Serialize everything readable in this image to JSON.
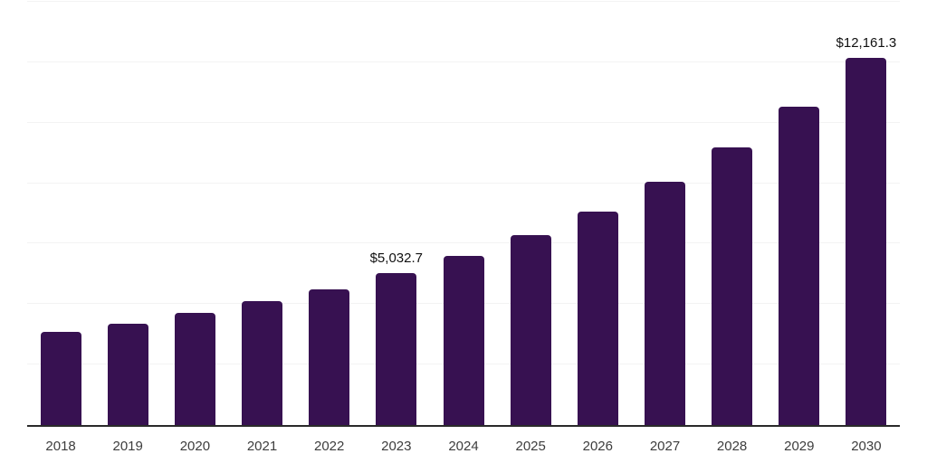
{
  "chart_data": {
    "type": "bar",
    "title": "",
    "xlabel": "",
    "ylabel": "",
    "categories": [
      "2018",
      "2019",
      "2020",
      "2021",
      "2022",
      "2023",
      "2024",
      "2025",
      "2026",
      "2027",
      "2028",
      "2029",
      "2030"
    ],
    "values": [
      3070,
      3350,
      3700,
      4090,
      4500,
      5032.7,
      5600,
      6290,
      7060,
      8040,
      9180,
      10520,
      12161.3
    ],
    "data_labels": [
      {
        "category": "2023",
        "text": "$5,032.7"
      },
      {
        "category": "2030",
        "text": "$12,161.3"
      }
    ],
    "ylim": [
      0,
      14000
    ],
    "grid_interval": 2000,
    "grid": true,
    "legend": false,
    "y_axis_tick_labels_visible": false,
    "colors": {
      "bar": "#371151",
      "gridline": "#f3f3f3",
      "axis_line": "#2a2a2a",
      "tick_label": "#3d3d3d",
      "data_label": "#111111",
      "background": "#ffffff"
    }
  }
}
